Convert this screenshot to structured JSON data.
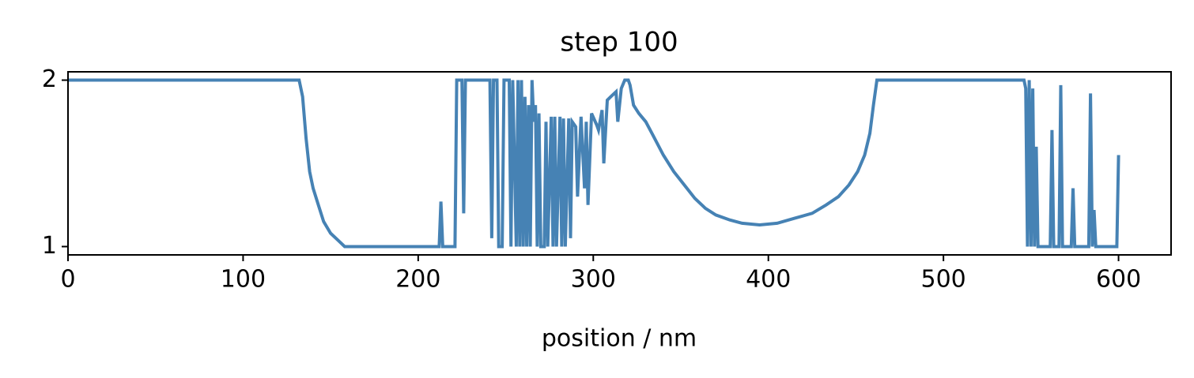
{
  "chart_data": {
    "type": "line",
    "title": "step 100",
    "x_label": "position / nm",
    "color": "#4682b4",
    "x": [
      0,
      132,
      134,
      136,
      138,
      140,
      143,
      146,
      150,
      155,
      158,
      212,
      213,
      214,
      221,
      222,
      225,
      226,
      227,
      241,
      242,
      243,
      245,
      246,
      248,
      249,
      252,
      253,
      254,
      256,
      257,
      258,
      259,
      260,
      261,
      262,
      263,
      264,
      265,
      266,
      267,
      268,
      269,
      270,
      272,
      273,
      274,
      276,
      277,
      278,
      279,
      281,
      282,
      283,
      284,
      286,
      287,
      288,
      290,
      291,
      293,
      295,
      296,
      297,
      299,
      302,
      303,
      305,
      306,
      308,
      310,
      313,
      314,
      316,
      318,
      320,
      321,
      323,
      326,
      330,
      334,
      340,
      346,
      352,
      358,
      364,
      370,
      378,
      385,
      395,
      405,
      415,
      425,
      433,
      440,
      446,
      451,
      455,
      458,
      460,
      462,
      546,
      547,
      548,
      549,
      550,
      551,
      552,
      553,
      554,
      561,
      562,
      563,
      566,
      567,
      568,
      573,
      574,
      575,
      583,
      584,
      585,
      586,
      587,
      599,
      600
    ],
    "values": [
      2,
      2,
      1.9,
      1.65,
      1.45,
      1.35,
      1.25,
      1.15,
      1.08,
      1.03,
      1.0,
      1.0,
      1.27,
      1.0,
      1.0,
      2,
      2,
      1.2,
      2,
      2,
      1.05,
      2,
      2,
      1.0,
      1.0,
      2,
      2,
      1.0,
      2,
      1.0,
      2,
      1.0,
      2,
      1.0,
      1.9,
      1.0,
      1.85,
      1.0,
      2,
      1.75,
      1.85,
      1.0,
      1.8,
      1.0,
      1.0,
      1.75,
      1.0,
      1.78,
      1.0,
      1.78,
      1.0,
      1.78,
      1.0,
      1.77,
      1.0,
      1.77,
      1.05,
      1.75,
      1.72,
      1.3,
      1.78,
      1.35,
      1.75,
      1.25,
      1.8,
      1.73,
      1.7,
      1.82,
      1.5,
      1.88,
      1.9,
      1.93,
      1.75,
      1.95,
      2.0,
      2.0,
      1.97,
      1.85,
      1.8,
      1.75,
      1.67,
      1.55,
      1.45,
      1.37,
      1.29,
      1.23,
      1.19,
      1.16,
      1.14,
      1.13,
      1.14,
      1.17,
      1.2,
      1.25,
      1.3,
      1.37,
      1.45,
      1.55,
      1.68,
      1.85,
      2.0,
      2.0,
      1.95,
      1.0,
      2.0,
      1.0,
      1.95,
      1.0,
      1.6,
      1.0,
      1.0,
      1.7,
      1.0,
      1.0,
      1.97,
      1.0,
      1.0,
      1.35,
      1.0,
      1.0,
      1.92,
      1.0,
      1.22,
      1.0,
      1.0,
      1.55
    ],
    "xlim": [
      0,
      630
    ],
    "ylim": [
      0.95,
      2.05
    ],
    "xticks": [
      0,
      100,
      200,
      300,
      400,
      500,
      600
    ],
    "yticks": [
      1,
      2
    ]
  }
}
